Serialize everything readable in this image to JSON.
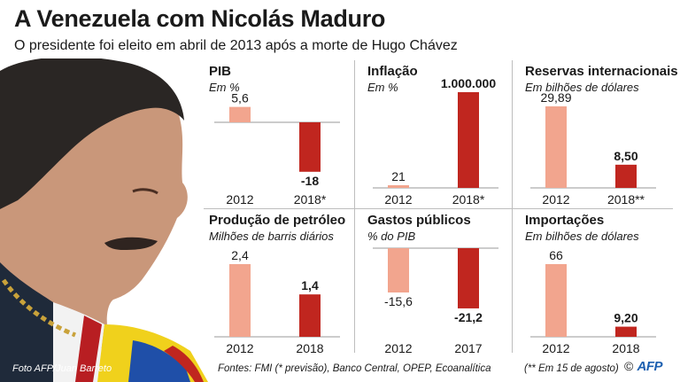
{
  "title": "A Venezuela com Nicolás Maduro",
  "subtitle": "O presidente foi eleito em abril de 2013 após a morte de Hugo Chávez",
  "credit": "Foto AFP/Juan Barreto",
  "sources": "Fontes: FMI (* previsão), Banco Central, OPEP, Ecoanalítica",
  "note": "(** Em 15 de agosto)",
  "copyright": "©",
  "logo": "AFP",
  "colors": {
    "light": "#f2a58e",
    "dark": "#c0261f"
  },
  "chart_data": [
    {
      "type": "bar",
      "title": "PIB",
      "ylabel": "Em %",
      "categories": [
        "2012",
        "2018*"
      ],
      "values": [
        5.6,
        -18
      ],
      "value_labels": [
        "5,6",
        "-18"
      ]
    },
    {
      "type": "bar",
      "title": "Inflação",
      "ylabel": "Em %",
      "categories": [
        "2012",
        "2018*"
      ],
      "values": [
        21,
        1000000
      ],
      "value_labels": [
        "21",
        "1.000.000"
      ]
    },
    {
      "type": "bar",
      "title": "Reservas internacionais",
      "ylabel": "Em bilhões de dólares",
      "categories": [
        "2012",
        "2018**"
      ],
      "values": [
        29.89,
        8.5
      ],
      "value_labels": [
        "29,89",
        "8,50"
      ]
    },
    {
      "type": "bar",
      "title": "Produção de petróleo",
      "ylabel": "Milhões de barris diários",
      "categories": [
        "2012",
        "2018"
      ],
      "values": [
        2.4,
        1.4
      ],
      "value_labels": [
        "2,4",
        "1,4"
      ]
    },
    {
      "type": "bar",
      "title": "Gastos públicos",
      "ylabel": "% do PIB",
      "categories": [
        "2012",
        "2017"
      ],
      "values": [
        -15.6,
        -21.2
      ],
      "value_labels": [
        "-15,6",
        "-21,2"
      ]
    },
    {
      "type": "bar",
      "title": "Importações",
      "ylabel": "Em bilhões de dólares",
      "categories": [
        "2012",
        "2018"
      ],
      "values": [
        66,
        9.2
      ],
      "value_labels": [
        "66",
        "9,20"
      ]
    }
  ]
}
